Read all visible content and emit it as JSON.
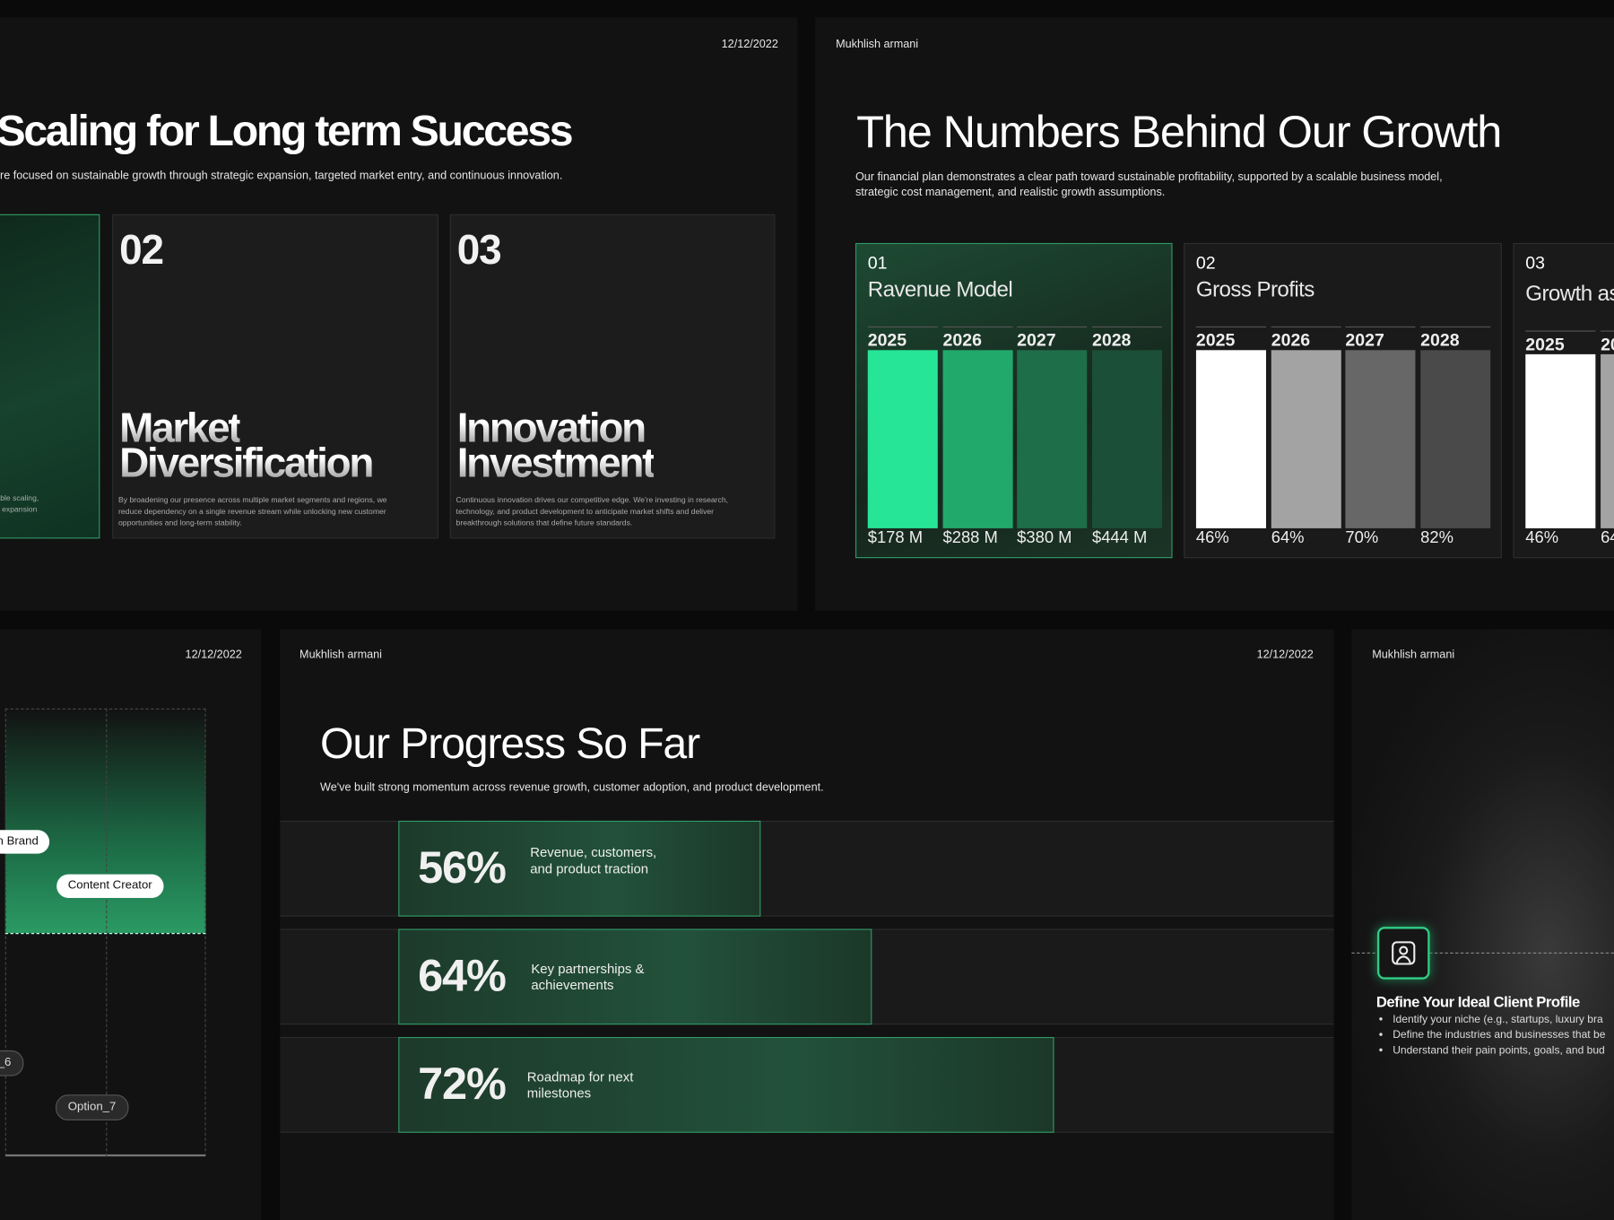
{
  "strategy_slide": {
    "date": "12/12/2022",
    "title": "Scaling for Long term Success",
    "description": "re focused on sustainable growth through strategic expansion, targeted market entry, and continuous innovation.",
    "cards": [
      {
        "text_lines": [
          "able scaling,",
          "y expansion"
        ]
      },
      {
        "number": "02",
        "heading_lines": [
          "Market",
          "Diversification"
        ],
        "text": "By broadening our presence across multiple market segments and regions, we reduce dependency on a single revenue stream while unlocking new customer opportunities and long-term stability."
      },
      {
        "number": "03",
        "heading_lines": [
          "Innovation",
          "Investment"
        ],
        "text": "Continuous innovation drives our competitive edge. We're investing in research, technology, and product development to anticipate market shifts and deliver breakthrough solutions that define future standards."
      }
    ]
  },
  "growth_slide": {
    "author": "Mukhlish armani",
    "title": "The Numbers Behind Our Growth",
    "description": "Our financial plan demonstrates a clear path toward sustainable profitability, supported by a scalable business model, strategic cost management, and realistic growth assumptions.",
    "panels": [
      {
        "number": "01",
        "title": "Ravenue Model",
        "years": [
          "2025",
          "2026",
          "2027",
          "2028"
        ],
        "values": [
          "$178 M",
          "$288 M",
          "$380 M",
          "$444 M"
        ]
      },
      {
        "number": "02",
        "title": "Gross Profits",
        "years": [
          "2025",
          "2026",
          "2027",
          "2028"
        ],
        "values": [
          "46%",
          "64%",
          "70%",
          "82%"
        ]
      },
      {
        "number": "03",
        "title": "Growth as",
        "years": [
          "2025",
          "20"
        ],
        "values": [
          "46%",
          "64"
        ]
      }
    ]
  },
  "market_slide": {
    "date": "12/12/2022",
    "tags": [
      "n Brand",
      "Content Creator",
      "_6",
      "Option_7"
    ]
  },
  "progress_slide": {
    "author": "Mukhlish armani",
    "date": "12/12/2022",
    "title": "Our Progress So Far",
    "description": "We've built strong momentum across revenue growth, customer adoption, and product development.",
    "items": [
      {
        "percent": "56%",
        "label": "Revenue, customers, and product traction"
      },
      {
        "percent": "64%",
        "label": "Key partnerships & achievements"
      },
      {
        "percent": "72%",
        "label": "Roadmap for next milestones"
      }
    ]
  },
  "client_slide": {
    "author": "Mukhlish armani",
    "heading": "Define Your Ideal Client Profile",
    "bullets": [
      "Identify your niche (e.g., startups, luxury bra",
      "Define the industries and businesses that be",
      "Understand their pain points, goals, and bud"
    ]
  }
}
